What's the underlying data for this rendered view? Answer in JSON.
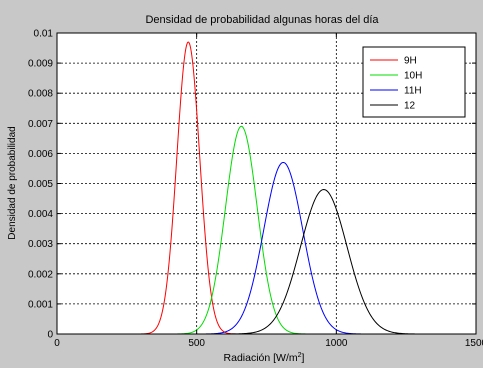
{
  "chart_data": {
    "type": "line",
    "title": "Densidad de probabilidad algunas  horas del día",
    "xlabel": "Radiación [W/m",
    "xlabel_sup": "2",
    "xlabel_close": "]",
    "ylabel": "Densidad de probabilidad",
    "xlim": [
      0,
      1500
    ],
    "ylim": [
      0,
      0.01
    ],
    "xticks": [
      0,
      500,
      1000,
      1500
    ],
    "xtick_labels": [
      "0",
      "500",
      "1000",
      "1500"
    ],
    "yticks": [
      0,
      0.001,
      0.002,
      0.003,
      0.004,
      0.005,
      0.006,
      0.007,
      0.008,
      0.009,
      0.01
    ],
    "ytick_labels": [
      "0",
      "0.001",
      "0.002",
      "0.003",
      "0.004",
      "0.005",
      "0.006",
      "0.007",
      "0.008",
      "0.009",
      "0.01"
    ],
    "grid": true,
    "legend_position": "top-right",
    "series": [
      {
        "name": "9H",
        "color": "#ff0000",
        "mean": 470,
        "std": 41,
        "peak": 0.0097,
        "x_range": [
          250,
          700
        ]
      },
      {
        "name": "10H",
        "color": "#00dd00",
        "mean": 660,
        "std": 57,
        "peak": 0.0069,
        "x_range": [
          350,
          950
        ]
      },
      {
        "name": "11H",
        "color": "#0000ff",
        "mean": 810,
        "std": 70,
        "peak": 0.0057,
        "x_range": [
          450,
          1150
        ]
      },
      {
        "name": "12",
        "color": "#000000",
        "mean": 955,
        "std": 83,
        "peak": 0.0048,
        "x_range": [
          550,
          1500
        ]
      }
    ]
  }
}
